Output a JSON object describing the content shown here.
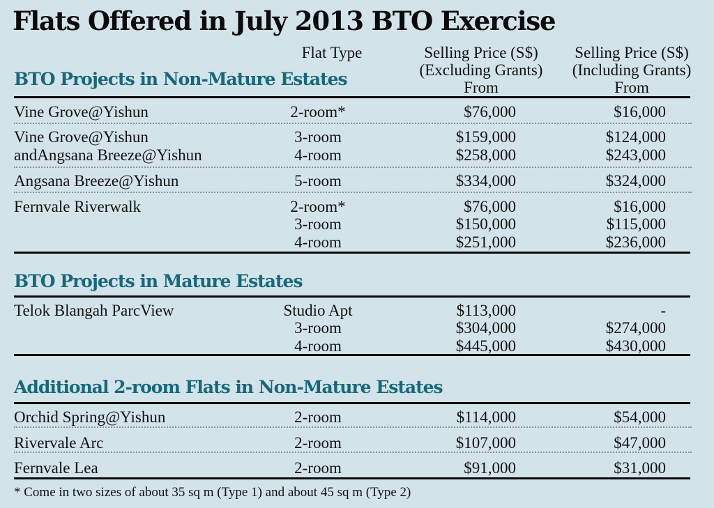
{
  "title": "Flats Offered in July 2013 BTO Exercise",
  "columns": {
    "flat_type": "Flat Type",
    "excl_line1": "Selling Price (S$)",
    "excl_line2": "(Excluding Grants)",
    "excl_line3": "From",
    "incl_line1": "Selling Price (S$)",
    "incl_line2": "(Including Grants)",
    "incl_line3": "From"
  },
  "sections": [
    {
      "heading": "BTO Projects in Non-Mature Estates",
      "rows": [
        {
          "name": "Vine Grove@Yishun",
          "type": "2-room*",
          "excl": "$76,000",
          "incl": "$16,000"
        },
        {
          "name": "Vine Grove@Yishun",
          "type": "3-room",
          "excl": "$159,000",
          "incl": "$124,000"
        },
        {
          "name": "andAngsana Breeze@Yishun",
          "type": "4-room",
          "excl": "$258,000",
          "incl": "$243,000"
        },
        {
          "name": "Angsana Breeze@Yishun",
          "type": "5-room",
          "excl": "$334,000",
          "incl": "$324,000"
        },
        {
          "name": "Fernvale Riverwalk",
          "type": "2-room*",
          "excl": "$76,000",
          "incl": "$16,000"
        },
        {
          "name": "",
          "type": "3-room",
          "excl": "$150,000",
          "incl": "$115,000"
        },
        {
          "name": "",
          "type": "4-room",
          "excl": "$251,000",
          "incl": "$236,000"
        }
      ]
    },
    {
      "heading": "BTO Projects in Mature Estates",
      "rows": [
        {
          "name": "Telok Blangah ParcView",
          "type": "Studio Apt",
          "excl": "$113,000",
          "incl": "-"
        },
        {
          "name": "",
          "type": "3-room",
          "excl": "$304,000",
          "incl": "$274,000"
        },
        {
          "name": "",
          "type": "4-room",
          "excl": "$445,000",
          "incl": "$430,000"
        }
      ]
    },
    {
      "heading": "Additional 2-room Flats in Non-Mature Estates",
      "rows": [
        {
          "name": "Orchid Spring@Yishun",
          "type": "2-room",
          "excl": "$114,000",
          "incl": "$54,000"
        },
        {
          "name": "Rivervale Arc",
          "type": "2-room",
          "excl": "$107,000",
          "incl": "$47,000"
        },
        {
          "name": "Fernvale Lea",
          "type": "2-room",
          "excl": "$91,000",
          "incl": "$31,000"
        }
      ]
    }
  ],
  "footnote": "* Come in two sizes of about 35 sq m (Type 1) and about 45 sq m (Type 2)",
  "colors": {
    "background": "#d3e3ea",
    "section_heading": "#17687a",
    "text": "#111111"
  }
}
